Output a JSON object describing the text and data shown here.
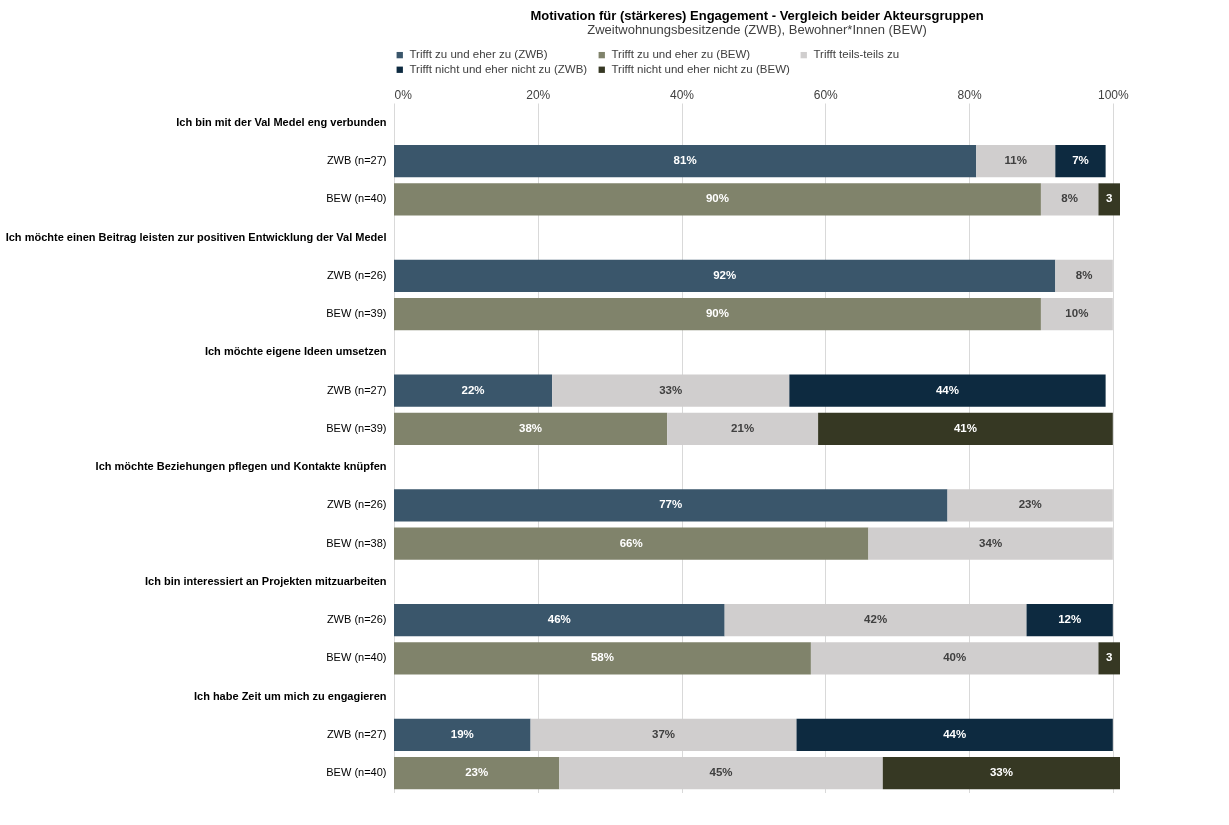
{
  "chart_data": {
    "type": "bar",
    "orientation": "horizontal",
    "stacked": true,
    "title": "Motivation für (stärkeres) Engagement - Vergleich beider Akteursgruppen",
    "subtitle": "Zweitwohnungsbesitzende (ZWB), Bewohner*Innen (BEW)",
    "categories": [
      "Ich bin mit der Val Medel eng verbunden",
      "ZWB (n=27)",
      "BEW (n=40)",
      "Ich möchte einen Beitrag leisten zur positiven Entwicklung der Val Medel",
      "ZWB (n=26)",
      "BEW (n=39)",
      "Ich möchte eigene Ideen umsetzen",
      "ZWB (n=27)",
      "BEW (n=39)",
      "Ich möchte Beziehungen pflegen und Kontakte knüpfen",
      "ZWB (n=26)",
      "BEW (n=38)",
      "Ich bin interessiert an Projekten mitzuarbeiten",
      "ZWB (n=26)",
      "BEW (n=40)",
      "Ich habe Zeit um mich zu engagieren",
      "ZWB (n=27)",
      "BEW (n=40)"
    ],
    "series": [
      {
        "name": "Trifft zu und eher zu (ZWB)",
        "color": "#3a566b",
        "values": [
          null,
          81,
          null,
          null,
          92,
          null,
          null,
          22,
          null,
          null,
          77,
          null,
          null,
          46,
          null,
          null,
          19,
          null
        ],
        "value_labels": [
          null,
          "81%",
          null,
          null,
          "92%",
          null,
          null,
          "22%",
          null,
          null,
          "77%",
          null,
          null,
          "46%",
          null,
          null,
          "19%",
          null
        ]
      },
      {
        "name": "Trifft zu und eher zu (BEW)",
        "color": "#80836b",
        "values": [
          null,
          null,
          90,
          null,
          null,
          90,
          null,
          null,
          38,
          null,
          null,
          66,
          null,
          null,
          58,
          null,
          null,
          23
        ],
        "value_labels": [
          null,
          null,
          "90%",
          null,
          null,
          "90%",
          null,
          null,
          "38%",
          null,
          null,
          "66%",
          null,
          null,
          "58%",
          null,
          null,
          "23%"
        ]
      },
      {
        "name": "Trifft teils-teils zu",
        "color": "#d0cece",
        "values": [
          null,
          11,
          8,
          null,
          8,
          10,
          null,
          33,
          21,
          null,
          23,
          34,
          null,
          42,
          40,
          null,
          37,
          45
        ],
        "value_labels": [
          null,
          "11%",
          "8%",
          null,
          "8%",
          "10%",
          null,
          "33%",
          "21%",
          null,
          "23%",
          "34%",
          null,
          "42%",
          "40%",
          null,
          "37%",
          "45%"
        ]
      },
      {
        "name": "Trifft nicht und eher nicht zu (ZWB)",
        "color": "#0d2a40",
        "values": [
          null,
          7,
          null,
          null,
          null,
          null,
          null,
          44,
          null,
          null,
          null,
          null,
          null,
          12,
          null,
          null,
          44,
          null
        ],
        "value_labels": [
          null,
          "7%",
          null,
          null,
          null,
          null,
          null,
          "44%",
          null,
          null,
          null,
          null,
          null,
          "12%",
          null,
          null,
          "44%",
          null
        ]
      },
      {
        "name": "Trifft nicht und eher nicht zu (BEW)",
        "color": "#363823",
        "values": [
          null,
          null,
          3,
          null,
          null,
          null,
          null,
          null,
          41,
          null,
          null,
          null,
          null,
          null,
          3,
          null,
          null,
          33
        ],
        "value_labels": [
          null,
          null,
          "3",
          null,
          null,
          null,
          null,
          null,
          "41%",
          null,
          null,
          null,
          null,
          null,
          "3",
          null,
          null,
          "33%"
        ]
      }
    ],
    "xlim": [
      0,
      101
    ],
    "xticks": [
      {
        "value": 0,
        "label": "0%"
      },
      {
        "value": 20,
        "label": "20%"
      },
      {
        "value": 40,
        "label": "40%"
      },
      {
        "value": 60,
        "label": "60%"
      },
      {
        "value": 80,
        "label": "80%"
      },
      {
        "value": 100,
        "label": "100%"
      }
    ],
    "grid": "x",
    "legend": "top"
  }
}
